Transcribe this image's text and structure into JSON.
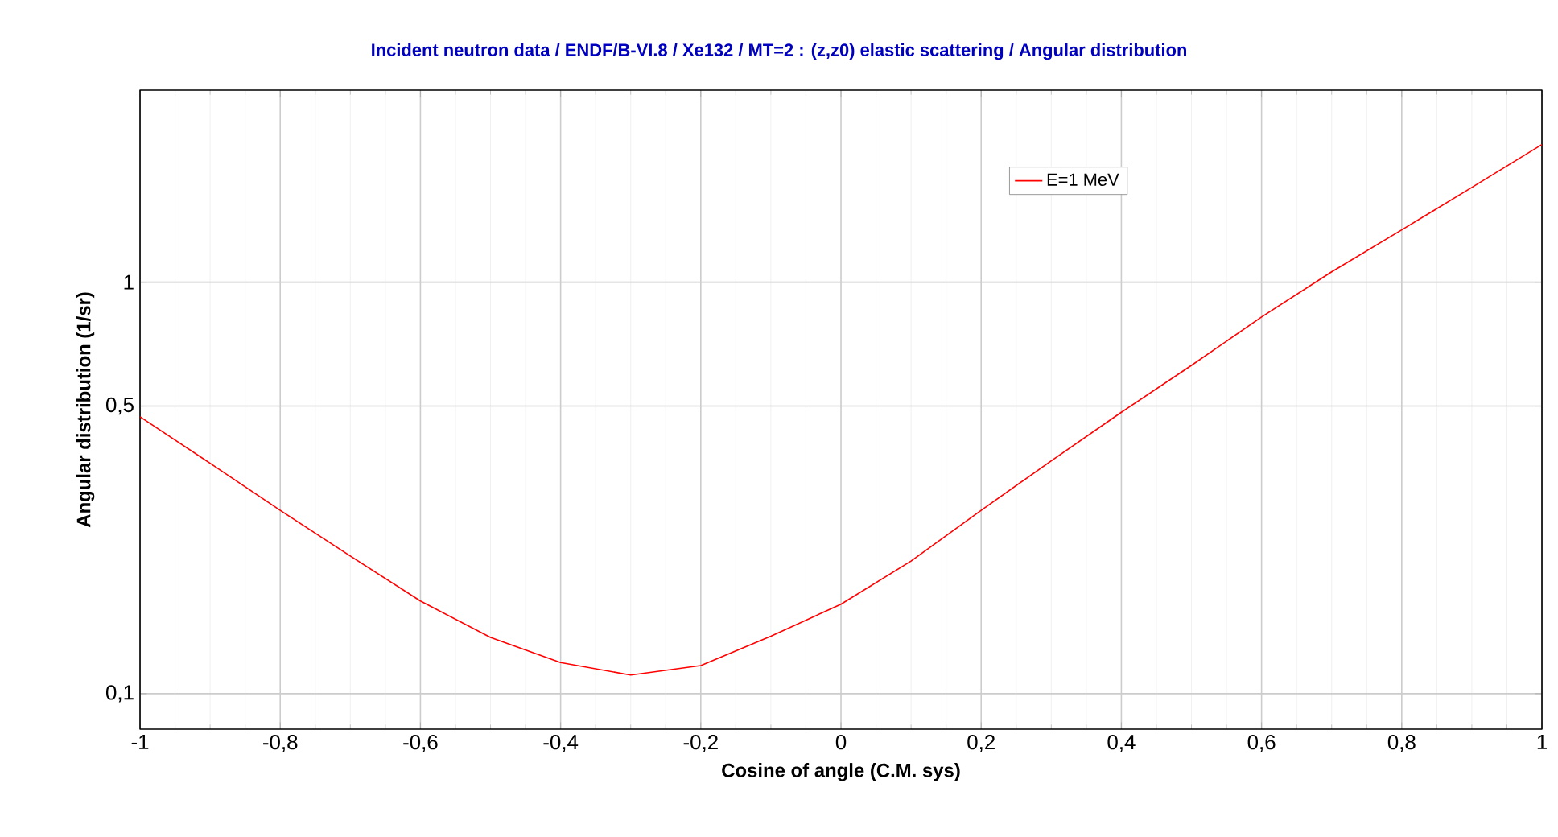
{
  "chart_data": {
    "type": "line",
    "title": "Incident neutron data / ENDF/B-VI.8 / Xe132 / MT=2 : (z,z0) elastic scattering / Angular distribution",
    "xlabel": "Cosine of angle (C.M. sys)",
    "ylabel": "Angular distribution (1/sr)",
    "series": [
      {
        "name": "E=1 MeV",
        "color": "#ff0000",
        "x": [
          -1,
          -0.9,
          -0.8,
          -0.7,
          -0.6,
          -0.5,
          -0.4,
          -0.3,
          -0.2,
          -0.1,
          0,
          0.1,
          0.2,
          0.3,
          0.4,
          0.5,
          0.6,
          0.7,
          0.8,
          0.9,
          1
        ],
        "values": [
          0.471,
          0.363,
          0.279,
          0.216,
          0.168,
          0.137,
          0.119,
          0.111,
          0.117,
          0.138,
          0.165,
          0.21,
          0.279,
          0.368,
          0.483,
          0.628,
          0.823,
          1.06,
          1.34,
          1.7,
          2.16
        ]
      }
    ],
    "xlim": [
      -1,
      1
    ],
    "ylim": [
      0.082,
      2.93
    ],
    "log": "y",
    "xticks": [
      -1,
      {
        "value": -0.8,
        "label": "-0,8"
      },
      {
        "value": -0.6,
        "label": "-0,6"
      },
      {
        "value": -0.4,
        "label": "-0,4"
      },
      {
        "value": -0.2,
        "label": "-0,2"
      },
      0,
      {
        "value": 0.2,
        "label": "0,2"
      },
      {
        "value": 0.4,
        "label": "0,4"
      },
      {
        "value": 0.6,
        "label": "0,6"
      },
      {
        "value": 0.8,
        "label": "0,8"
      },
      1
    ],
    "yticks": [
      {
        "value": 0.1,
        "label": "0,1"
      },
      {
        "value": 0.5,
        "label": "0,5"
      },
      1
    ],
    "grid": true,
    "legend": "top right",
    "marker": "none",
    "line_style": "solid"
  }
}
